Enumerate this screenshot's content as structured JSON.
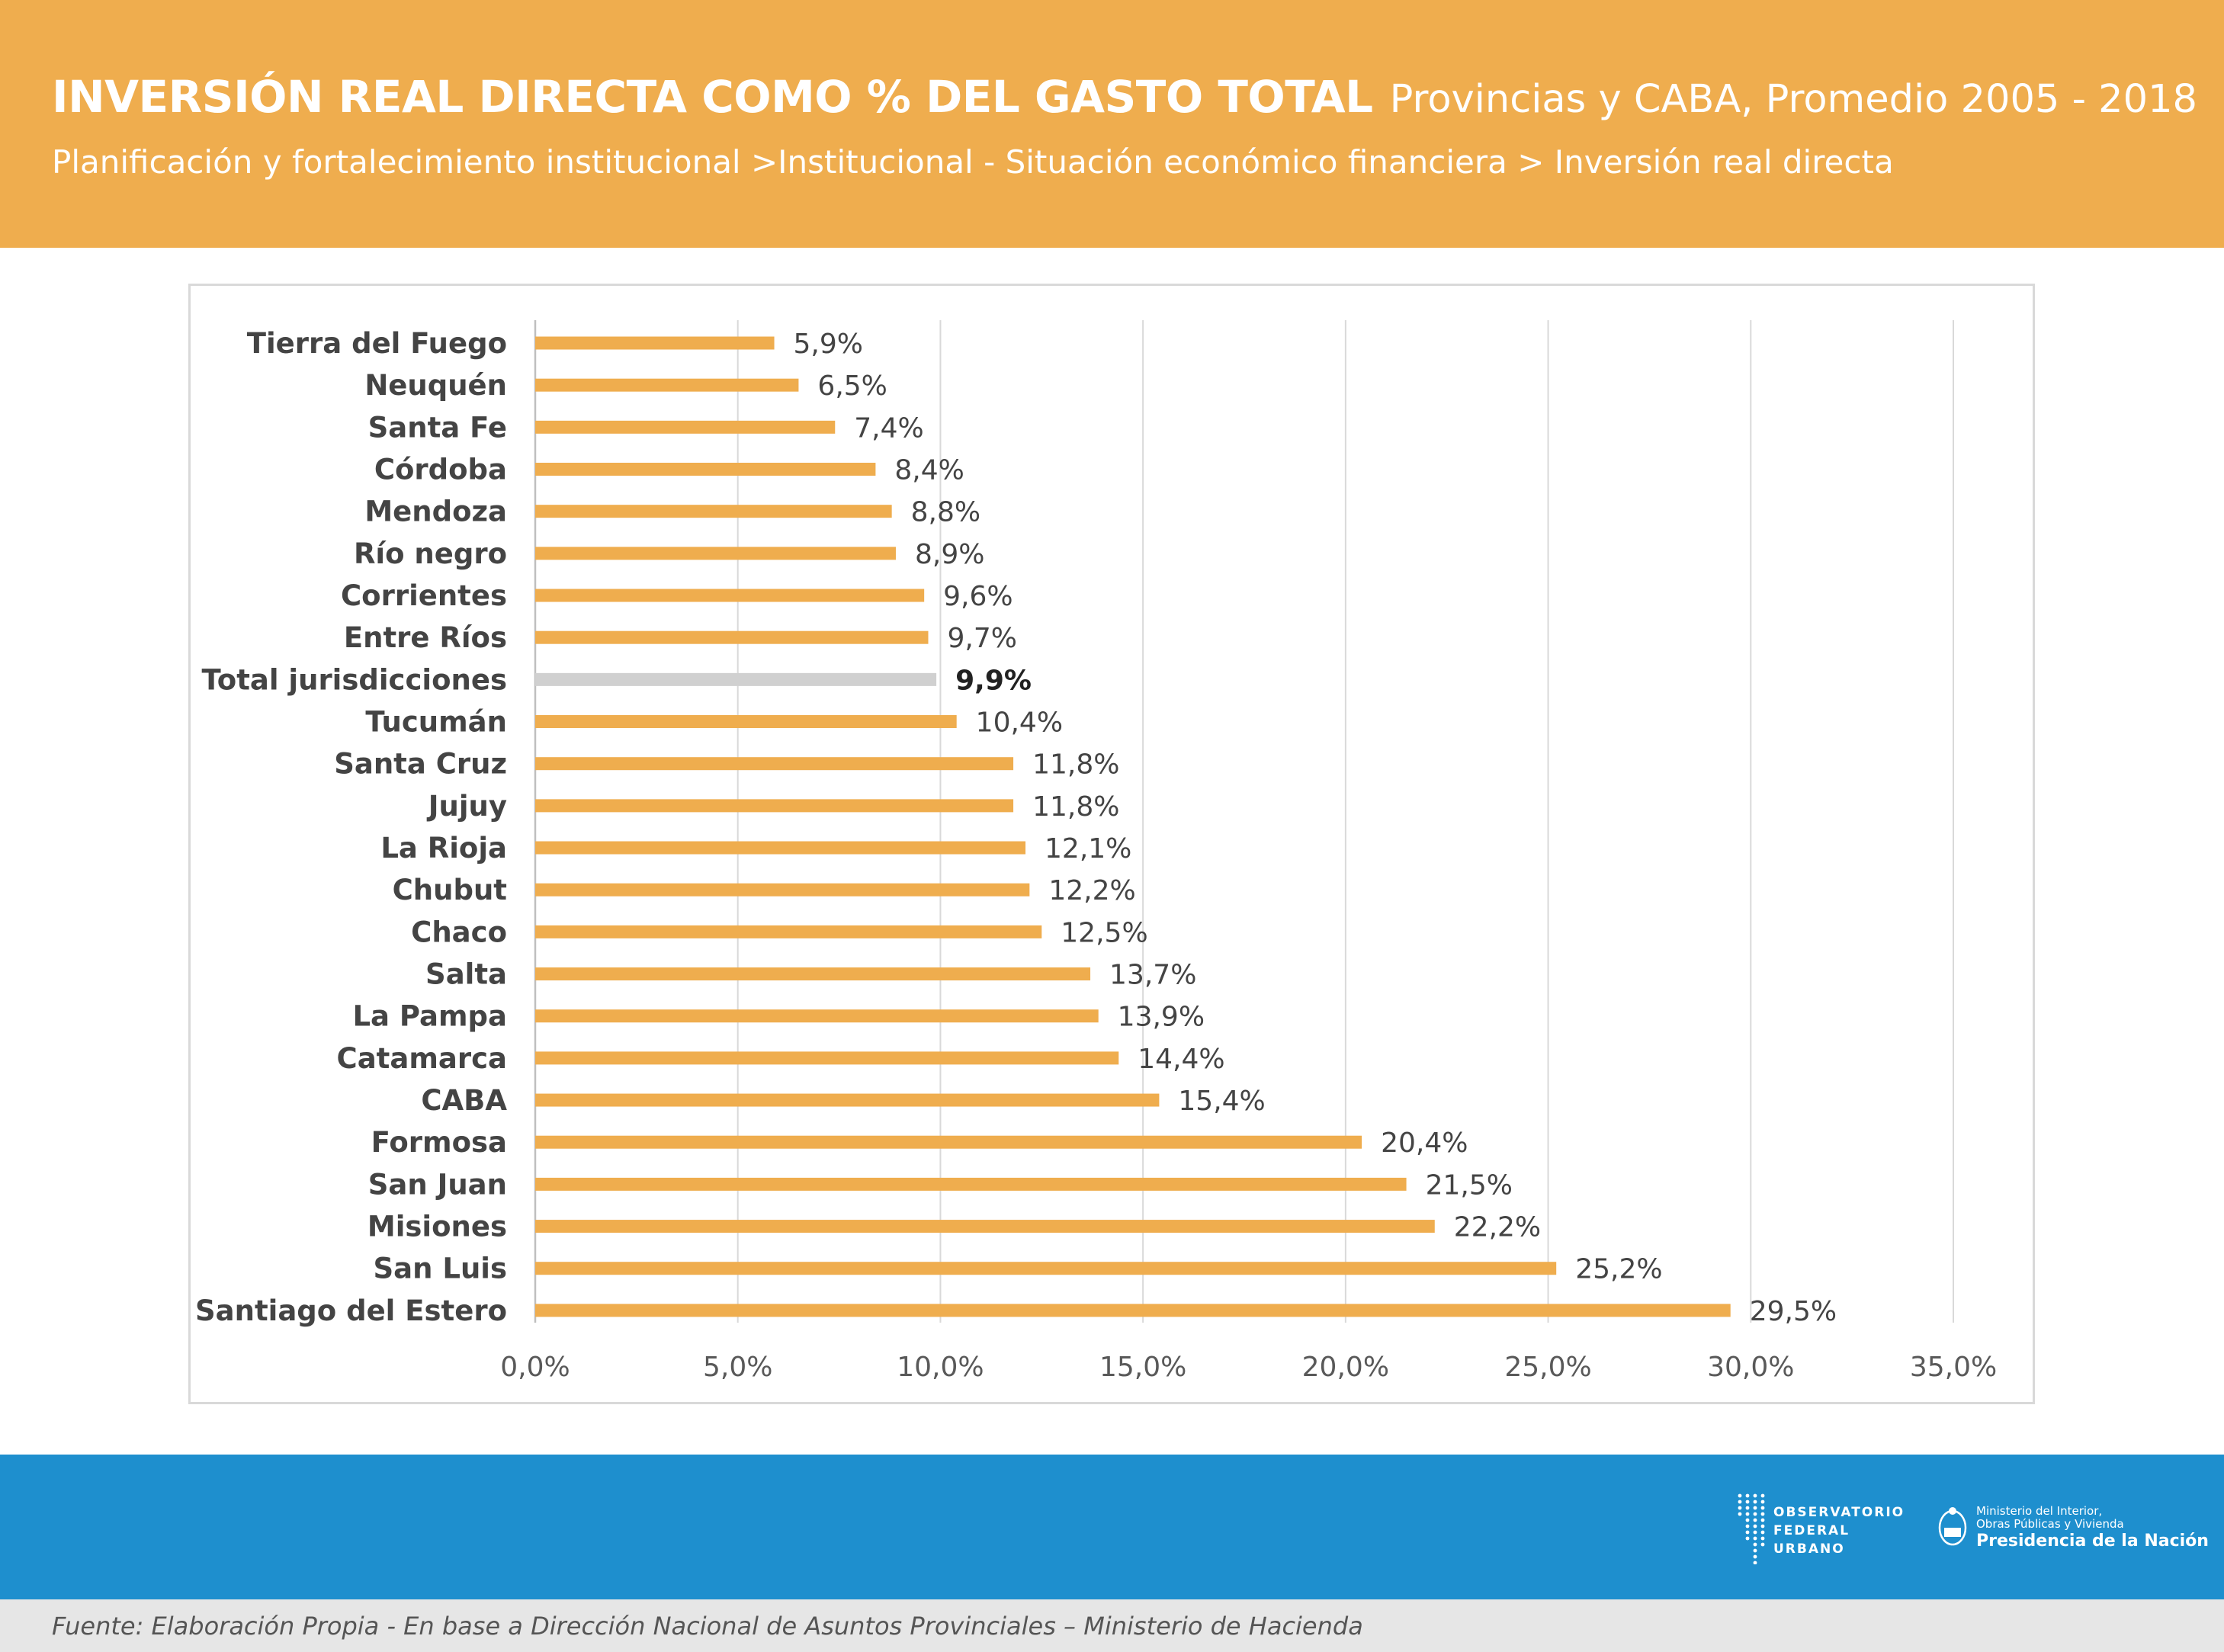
{
  "header": {
    "title_main": "INVERSIÓN REAL DIRECTA COMO % DEL GASTO TOTAL",
    "title_sub": "Provincias y CABA,  Promedio 2005 - 2018",
    "subtitle": "Planificación y fortalecimiento institucional >Institucional - Situación económico financiera > Inversión real directa"
  },
  "colors": {
    "header_bg": "#efad4e",
    "bar": "#efad4e",
    "bar_highlight": "#d0d0d0",
    "footer_bg": "#1e8fce",
    "source_bg": "#e6e6e6"
  },
  "chart_data": {
    "type": "bar",
    "orientation": "horizontal",
    "title": "",
    "xlabel": "",
    "ylabel": "",
    "xlim": [
      0,
      35
    ],
    "x_ticks": [
      "0,0%",
      "5,0%",
      "10,0%",
      "15,0%",
      "20,0%",
      "25,0%",
      "30,0%",
      "35,0%"
    ],
    "grid": "vertical",
    "categories": [
      "Tierra del Fuego",
      "Neuquén",
      "Santa Fe",
      "Córdoba",
      "Mendoza",
      "Río negro",
      "Corrientes",
      "Entre Ríos",
      "Total jurisdicciones",
      "Tucumán",
      "Santa Cruz",
      "Jujuy",
      "La Rioja",
      "Chubut",
      "Chaco",
      "Salta",
      "La Pampa",
      "Catamarca",
      "CABA",
      "Formosa",
      "San Juan",
      "Misiones",
      "San Luis",
      "Santiago del Estero"
    ],
    "values": [
      5.9,
      6.5,
      7.4,
      8.4,
      8.8,
      8.9,
      9.6,
      9.7,
      9.9,
      10.4,
      11.8,
      11.8,
      12.1,
      12.2,
      12.5,
      13.7,
      13.9,
      14.4,
      15.4,
      20.4,
      21.5,
      22.2,
      25.2,
      29.5
    ],
    "value_labels": [
      "5,9%",
      "6,5%",
      "7,4%",
      "8,4%",
      "8,8%",
      "8,9%",
      "9,6%",
      "9,7%",
      "9,9%",
      "10,4%",
      "11,8%",
      "11,8%",
      "12,1%",
      "12,2%",
      "12,5%",
      "13,7%",
      "13,9%",
      "14,4%",
      "15,4%",
      "20,4%",
      "21,5%",
      "22,2%",
      "25,2%",
      "29,5%"
    ],
    "highlight_category": "Total jurisdicciones"
  },
  "footer": {
    "ofu_lines": [
      "OBSERVATORIO",
      "FEDERAL",
      "URBANO"
    ],
    "ministry_line1": "Ministerio del Interior,",
    "ministry_line2": "Obras Públicas y Vivienda",
    "ministry_line3": "Presidencia de la Nación",
    "source": "Fuente: Elaboración Propia - En base  a Dirección Nacional de Asuntos Provinciales – Ministerio de Hacienda"
  }
}
